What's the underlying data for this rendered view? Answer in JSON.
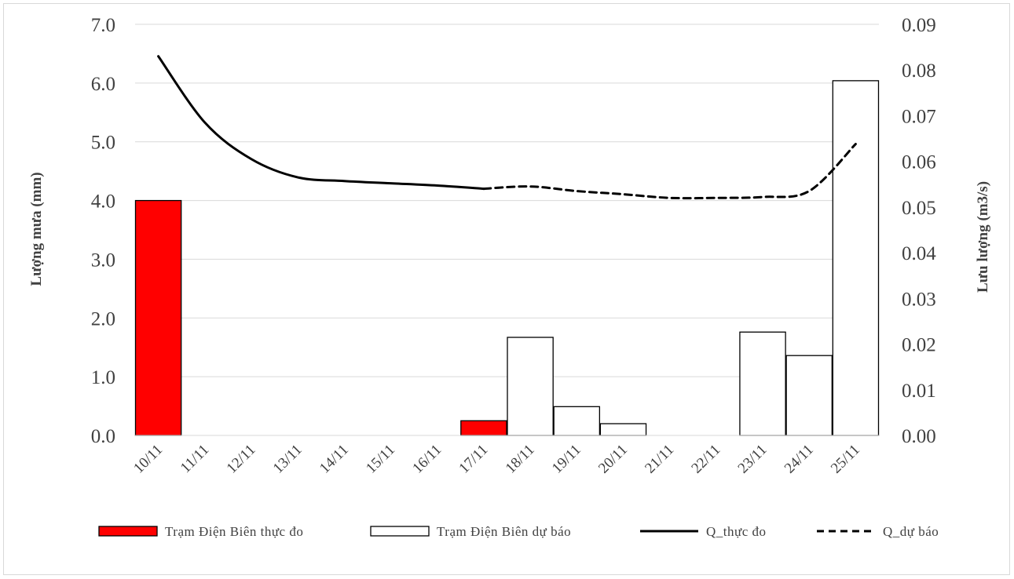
{
  "chart_data": {
    "type": "bar",
    "categories": [
      "10/11",
      "11/11",
      "12/11",
      "13/11",
      "14/11",
      "15/11",
      "16/11",
      "17/11",
      "18/11",
      "19/11",
      "20/11",
      "21/11",
      "22/11",
      "23/11",
      "24/11",
      "25/11"
    ],
    "series": [
      {
        "name": "Trạm Điện Biên thực đo",
        "kind": "bar",
        "axis": "left",
        "color": "#ff0000",
        "values": [
          4.0,
          0,
          0,
          0,
          0,
          0,
          0,
          0.25,
          null,
          null,
          null,
          null,
          null,
          null,
          null,
          null
        ]
      },
      {
        "name": "Trạm Điện Biên dự báo",
        "kind": "bar",
        "axis": "left",
        "color": "#ffffff",
        "values": [
          null,
          null,
          null,
          null,
          null,
          null,
          null,
          null,
          1.67,
          0.49,
          0.2,
          0,
          0,
          1.76,
          1.36,
          6.04
        ]
      },
      {
        "name": "Q_thực đo",
        "kind": "line",
        "axis": "right",
        "style": "solid",
        "color": "#000000",
        "values": [
          0.083,
          0.0685,
          0.0605,
          0.0565,
          0.0557,
          0.0552,
          0.0547,
          0.054,
          null,
          null,
          null,
          null,
          null,
          null,
          null,
          null
        ]
      },
      {
        "name": "Q_dự báo",
        "kind": "line",
        "axis": "right",
        "style": "dashed",
        "color": "#000000",
        "values": [
          null,
          null,
          null,
          null,
          null,
          null,
          null,
          0.054,
          0.0545,
          0.0535,
          0.0528,
          0.052,
          0.052,
          0.0522,
          0.0535,
          0.0638
        ]
      }
    ],
    "ylabel": "Lượng mưa (mm)",
    "y2label": "Lưu lượng (m3/s)",
    "ylim": [
      0,
      7
    ],
    "yticks": [
      "0.0",
      "1.0",
      "2.0",
      "3.0",
      "4.0",
      "5.0",
      "6.0",
      "7.0"
    ],
    "y2lim": [
      0,
      0.09
    ],
    "y2ticks": [
      "0.00",
      "0.01",
      "0.02",
      "0.03",
      "0.04",
      "0.05",
      "0.06",
      "0.07",
      "0.08",
      "0.09"
    ],
    "grid": true,
    "legend_position": "bottom"
  }
}
